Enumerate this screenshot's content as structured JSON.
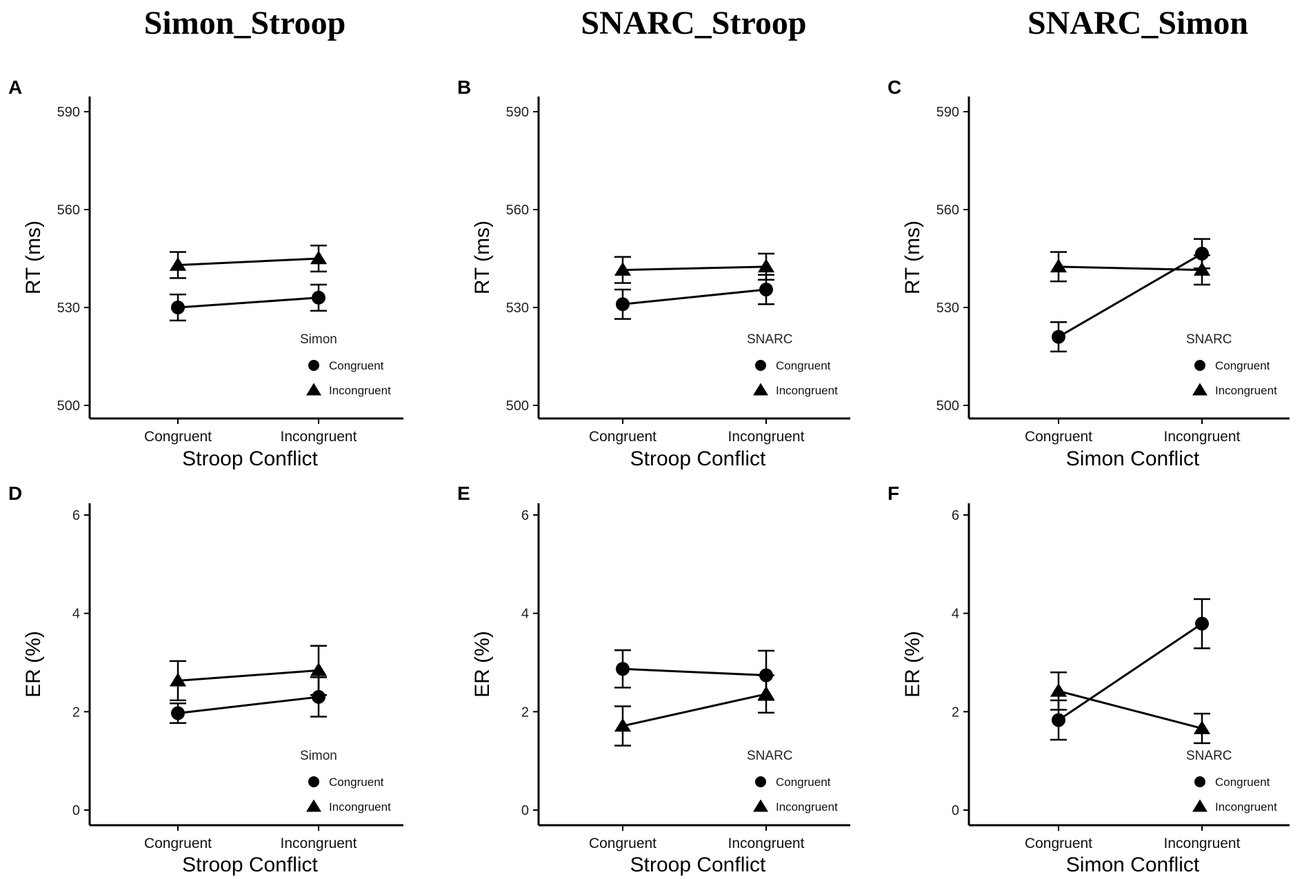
{
  "column_titles": [
    "Simon_Stroop",
    "SNARC_Stroop",
    "SNARC_Simon"
  ],
  "chart_data": [
    {
      "panel": "A",
      "type": "line",
      "xlabel": "Stroop Conflict",
      "ylabel": "RT (ms)",
      "categories": [
        "Congruent",
        "Incongruent"
      ],
      "yticks": [
        500,
        530,
        560,
        590
      ],
      "ylim": [
        496,
        592
      ],
      "legend_title": "Simon",
      "series": [
        {
          "name": "Congruent",
          "marker": "circle",
          "values": [
            530,
            533
          ],
          "errors": [
            4,
            4
          ]
        },
        {
          "name": "Incongruent",
          "marker": "triangle",
          "values": [
            543,
            545
          ],
          "errors": [
            4,
            4
          ]
        }
      ]
    },
    {
      "panel": "B",
      "type": "line",
      "xlabel": "Stroop Conflict",
      "ylabel": "RT (ms)",
      "categories": [
        "Congruent",
        "Incongruent"
      ],
      "yticks": [
        500,
        530,
        560,
        590
      ],
      "ylim": [
        496,
        592
      ],
      "legend_title": "SNARC",
      "series": [
        {
          "name": "Congruent",
          "marker": "circle",
          "values": [
            531,
            535.5
          ],
          "errors": [
            4.5,
            4.5
          ]
        },
        {
          "name": "Incongruent",
          "marker": "triangle",
          "values": [
            541.5,
            542.5
          ],
          "errors": [
            4,
            4
          ]
        }
      ]
    },
    {
      "panel": "C",
      "type": "line",
      "xlabel": "Simon Conflict",
      "ylabel": "RT (ms)",
      "categories": [
        "Congruent",
        "Incongruent"
      ],
      "yticks": [
        500,
        530,
        560,
        590
      ],
      "ylim": [
        496,
        592
      ],
      "legend_title": "SNARC",
      "series": [
        {
          "name": "Congruent",
          "marker": "circle",
          "values": [
            521,
            546.5
          ],
          "errors": [
            4.5,
            4.5
          ]
        },
        {
          "name": "Incongruent",
          "marker": "triangle",
          "values": [
            542.5,
            541.5
          ],
          "errors": [
            4.5,
            4.5
          ]
        }
      ]
    },
    {
      "panel": "D",
      "type": "line",
      "xlabel": "Stroop Conflict",
      "ylabel": "ER (%)",
      "categories": [
        "Congruent",
        "Incongruent"
      ],
      "yticks": [
        0,
        2,
        4,
        6
      ],
      "ylim": [
        -0.3,
        6.3
      ],
      "legend_title": "Simon",
      "series": [
        {
          "name": "Congruent",
          "marker": "circle",
          "values": [
            1.97,
            2.3
          ],
          "errors": [
            0.2,
            0.4
          ]
        },
        {
          "name": "Incongruent",
          "marker": "triangle",
          "values": [
            2.63,
            2.84
          ],
          "errors": [
            0.4,
            0.5
          ]
        }
      ]
    },
    {
      "panel": "E",
      "type": "line",
      "xlabel": "Stroop Conflict",
      "ylabel": "ER (%)",
      "categories": [
        "Congruent",
        "Incongruent"
      ],
      "yticks": [
        0,
        2,
        4,
        6
      ],
      "ylim": [
        -0.3,
        6.3
      ],
      "legend_title": "SNARC",
      "series": [
        {
          "name": "Congruent",
          "marker": "circle",
          "values": [
            2.87,
            2.74
          ],
          "errors": [
            0.38,
            0.5
          ]
        },
        {
          "name": "Incongruent",
          "marker": "triangle",
          "values": [
            1.71,
            2.36
          ],
          "errors": [
            0.4,
            0.38
          ]
        }
      ]
    },
    {
      "panel": "F",
      "type": "line",
      "xlabel": "Simon Conflict",
      "ylabel": "ER (%)",
      "categories": [
        "Congruent",
        "Incongruent"
      ],
      "yticks": [
        0,
        2,
        4,
        6
      ],
      "ylim": [
        -0.3,
        6.3
      ],
      "legend_title": "SNARC",
      "series": [
        {
          "name": "Congruent",
          "marker": "circle",
          "values": [
            1.83,
            3.79
          ],
          "errors": [
            0.4,
            0.5
          ]
        },
        {
          "name": "Incongruent",
          "marker": "triangle",
          "values": [
            2.42,
            1.66
          ],
          "errors": [
            0.38,
            0.3
          ]
        }
      ]
    }
  ]
}
